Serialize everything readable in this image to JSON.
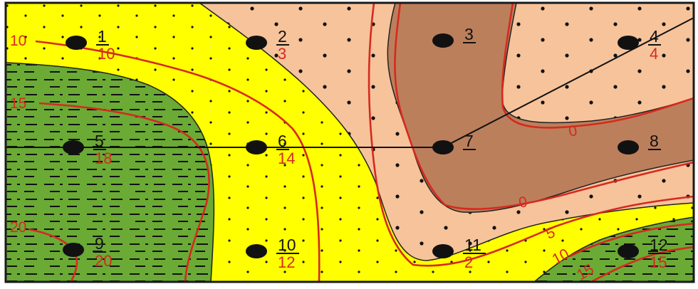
{
  "colors": {
    "frame": "#1a1a1a",
    "yellow_zone": "#ffff00",
    "sand_zone": "#f6c39b",
    "brown_zone": "#bb7f5c",
    "green_zone": "#6aaa35",
    "isoline": "#d62a1e",
    "well": "#111111",
    "well_number": "#111111",
    "well_value": "#d62a1e"
  },
  "wells": [
    {
      "id": "1",
      "number": "1",
      "value": "10"
    },
    {
      "id": "2",
      "number": "2",
      "value": "3"
    },
    {
      "id": "3",
      "number": "3",
      "value": ""
    },
    {
      "id": "4",
      "number": "4",
      "value": "4"
    },
    {
      "id": "5",
      "number": "5",
      "value": "18"
    },
    {
      "id": "6",
      "number": "6",
      "value": "14"
    },
    {
      "id": "7",
      "number": "7",
      "value": ""
    },
    {
      "id": "8",
      "number": "8",
      "value": ""
    },
    {
      "id": "9",
      "number": "9",
      "value": "20"
    },
    {
      "id": "10",
      "number": "10",
      "value": "12"
    },
    {
      "id": "11",
      "number": "11",
      "value": "2"
    },
    {
      "id": "12",
      "number": "12",
      "value": "15"
    }
  ],
  "isoline_labels": [
    {
      "id": "iso-10-left",
      "text": "10"
    },
    {
      "id": "iso-15-left",
      "text": "15"
    },
    {
      "id": "iso-20-left",
      "text": "20"
    },
    {
      "id": "iso-0-upper",
      "text": "0"
    },
    {
      "id": "iso-0-lower",
      "text": "0"
    },
    {
      "id": "iso-5-right",
      "text": "5"
    },
    {
      "id": "iso-10-right",
      "text": "10"
    },
    {
      "id": "iso-15-right",
      "text": "15"
    }
  ]
}
